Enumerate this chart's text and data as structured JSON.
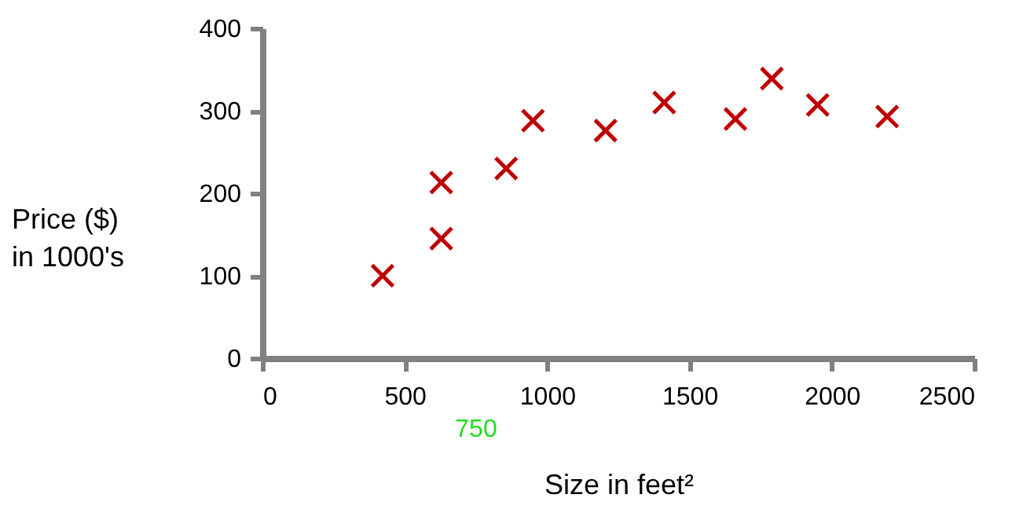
{
  "chart_data": {
    "type": "scatter",
    "xlabel": "Size in feet²",
    "ylabel": "Price ($)\nin 1000's",
    "x": [
      422,
      628,
      628,
      856,
      950,
      1205,
      1411,
      1661,
      1789,
      1950,
      2194
    ],
    "series": [
      {
        "color": "#c00000",
        "values": [
          100,
          145,
          213,
          230,
          288,
          276,
          310,
          290,
          339,
          307,
          293
        ]
      }
    ],
    "marker": "cross",
    "xlim": [
      0,
      2500
    ],
    "ylim": [
      0,
      400
    ],
    "xticks": [
      0,
      500,
      1000,
      1500,
      2000,
      2500
    ],
    "yticks": [
      0,
      100,
      200,
      300,
      400
    ],
    "annotations": [
      "750"
    ]
  }
}
